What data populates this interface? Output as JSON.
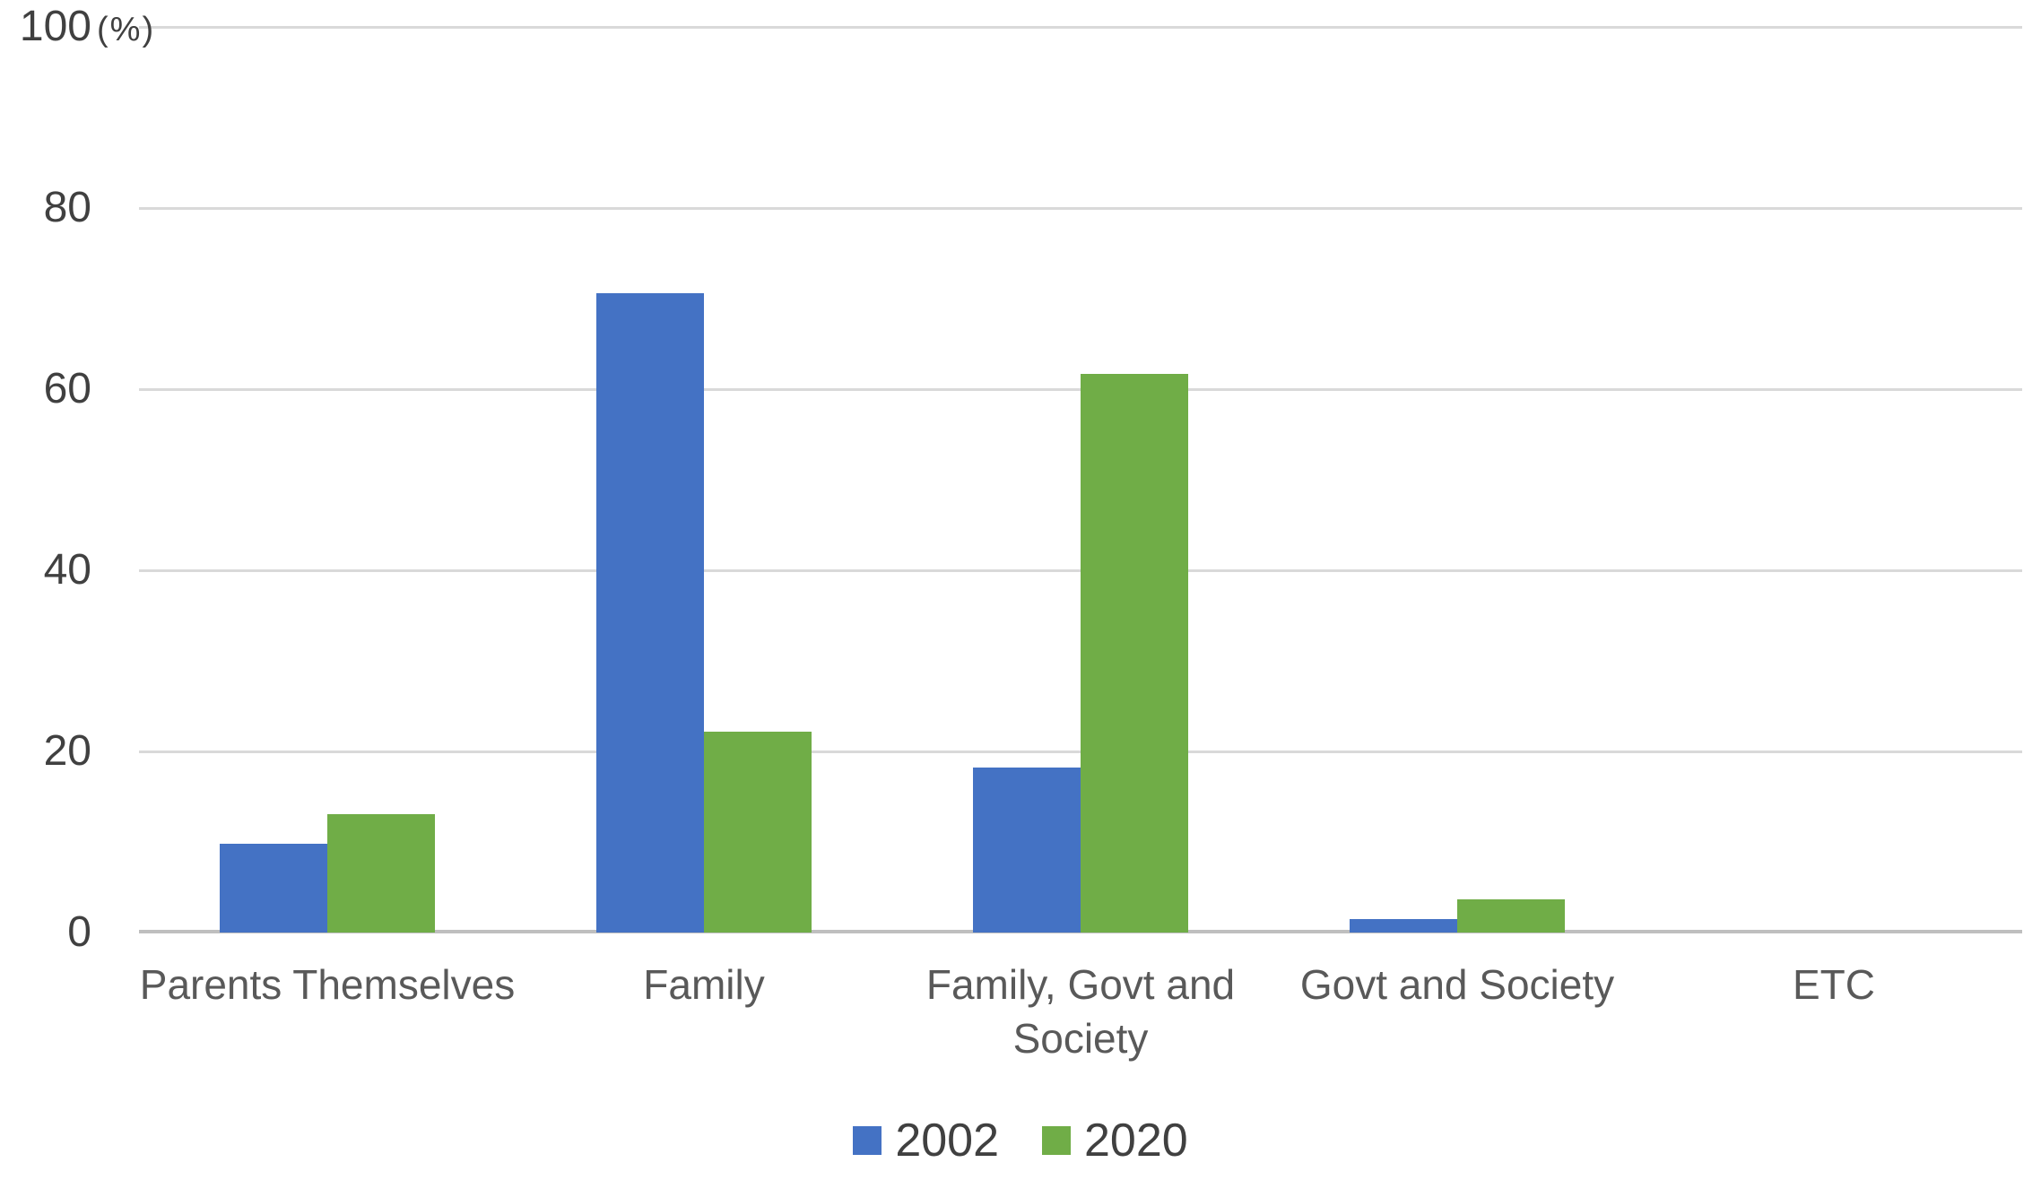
{
  "chart_data": {
    "type": "bar",
    "title": "",
    "ylabel": "(%)",
    "categories": [
      "Parents Themselves",
      "Family",
      "Family, Govt and Society",
      "Govt and Society",
      "ETC"
    ],
    "series": [
      {
        "name": "2002",
        "color": "#4472C4",
        "values": [
          9.8,
          70.6,
          18.2,
          1.5,
          0
        ]
      },
      {
        "name": "2020",
        "color": "#70AD47",
        "values": [
          13.1,
          22.2,
          61.7,
          3.7,
          0
        ]
      }
    ],
    "ylim": [
      0,
      100
    ],
    "yticks": [
      0,
      20,
      40,
      60,
      80,
      100
    ],
    "grid": true,
    "legend_position": "bottom",
    "colors": {
      "gridline": "#D9D9D9",
      "axis_line": "#BFBFBF",
      "tick_text": "#404040",
      "category_text": "#595959",
      "legend_text": "#404040",
      "background": "#FFFFFF"
    }
  }
}
